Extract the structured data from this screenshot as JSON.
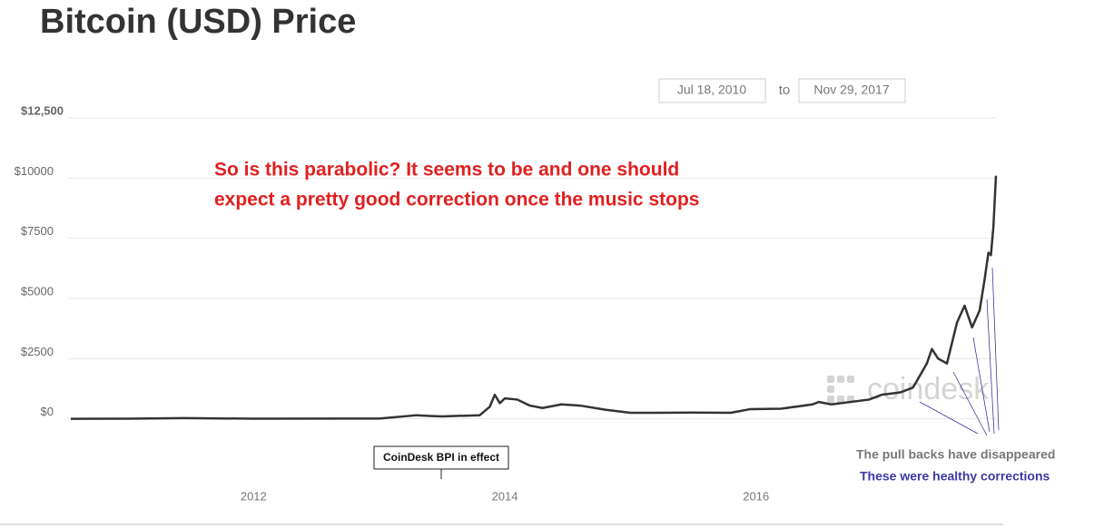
{
  "header": {
    "title": "Bitcoin (USD) Price"
  },
  "date_range": {
    "from": "Jul 18, 2010",
    "separator": "to",
    "to": "Nov 29, 2017"
  },
  "chart_data": {
    "type": "line",
    "color": "#333333",
    "xlim": [
      2010.545,
      2017.91
    ],
    "xticks": [
      2012,
      2014,
      2016
    ],
    "ylim": [
      -2500,
      12500
    ],
    "yticks": [
      {
        "value": 0,
        "label": "$0"
      },
      {
        "value": 2500,
        "label": "$2500"
      },
      {
        "value": 5000,
        "label": "$5000"
      },
      {
        "value": 7500,
        "label": "$7500"
      },
      {
        "value": 10000,
        "label": "$10000"
      },
      {
        "value": 12500,
        "label": "$12,500"
      }
    ],
    "grid": true,
    "x": [
      2010.545,
      2011.0,
      2011.45,
      2012.0,
      2013.0,
      2013.3,
      2013.4,
      2013.5,
      2013.8,
      2013.88,
      2013.92,
      2013.96,
      2014.0,
      2014.1,
      2014.2,
      2014.3,
      2014.45,
      2014.6,
      2014.8,
      2015.0,
      2015.2,
      2015.5,
      2015.8,
      2015.95,
      2016.2,
      2016.45,
      2016.5,
      2016.6,
      2016.9,
      2017.0,
      2017.15,
      2017.25,
      2017.36,
      2017.4,
      2017.45,
      2017.52,
      2017.6,
      2017.66,
      2017.72,
      2017.78,
      2017.82,
      2017.85,
      2017.87,
      2017.89,
      2017.91
    ],
    "values": [
      0,
      5,
      30,
      5,
      13,
      150,
      120,
      100,
      150,
      500,
      1000,
      650,
      850,
      800,
      550,
      450,
      600,
      550,
      380,
      250,
      250,
      260,
      250,
      400,
      420,
      600,
      700,
      600,
      800,
      1000,
      1100,
      1300,
      2300,
      2900,
      2500,
      2300,
      4000,
      4700,
      3800,
      4500,
      5800,
      6900,
      6800,
      8000,
      10100
    ],
    "marker_label": "CoinDesk BPI in effect",
    "watermark": "coindesk",
    "annotations": [
      "So is this parabolic?  It seems to be and one should",
      "expect a pretty good correction once the music stops"
    ],
    "notes": [
      "The pull backs have disappeared",
      "These were healthy corrections"
    ]
  }
}
